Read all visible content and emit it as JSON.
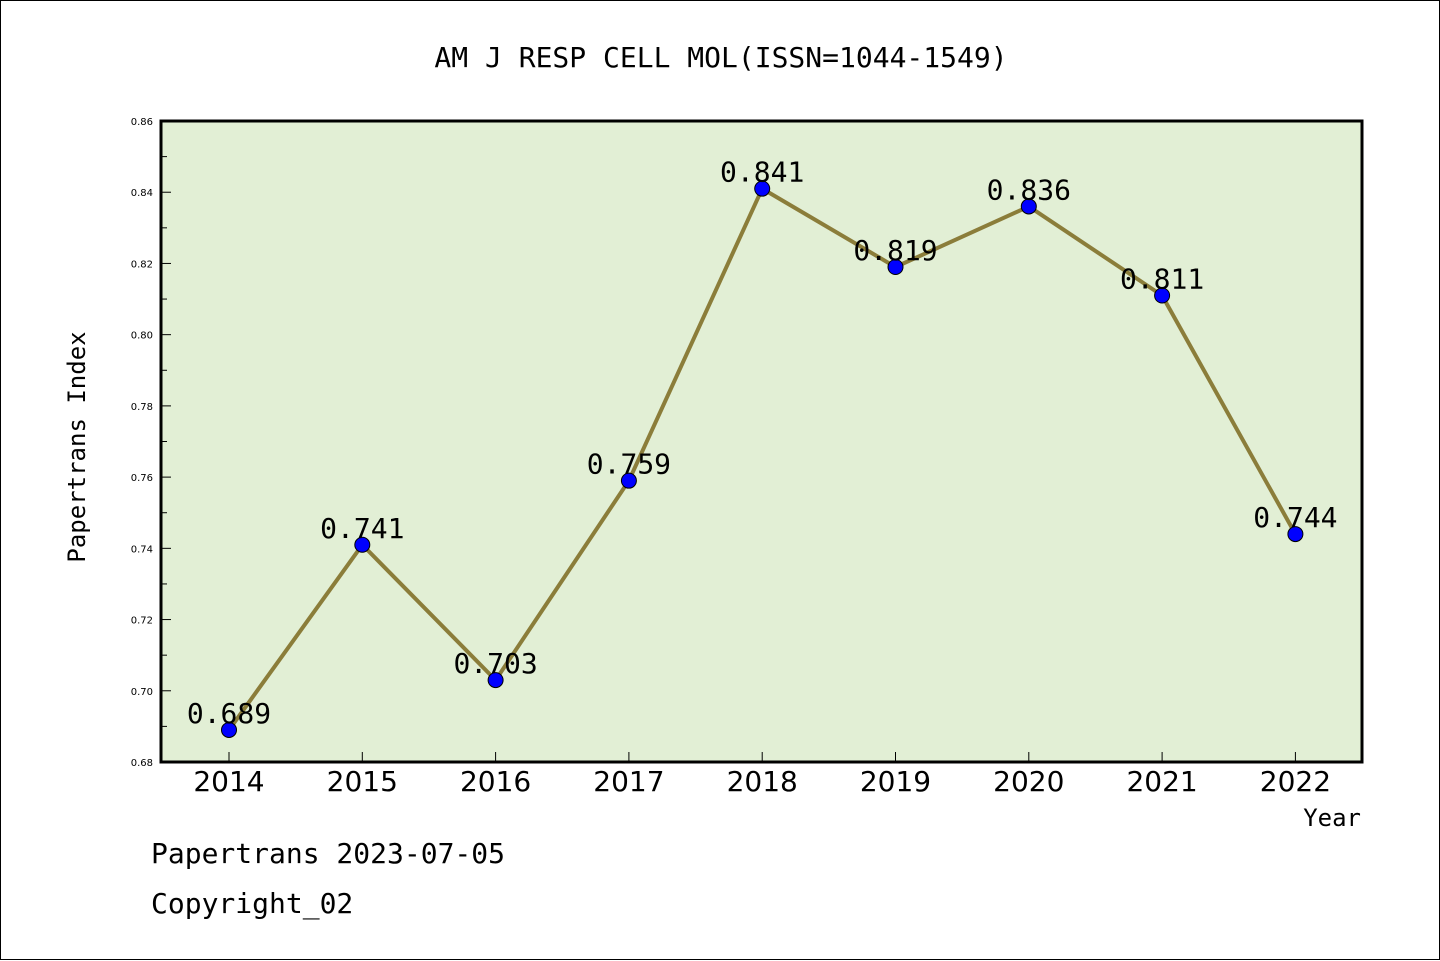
{
  "chart_data": {
    "type": "line",
    "title": "AM J RESP CELL MOL(ISSN=1044-1549)",
    "xlabel": "Year",
    "ylabel": "Papertrans Index",
    "categories": [
      "2014",
      "2015",
      "2016",
      "2017",
      "2018",
      "2019",
      "2020",
      "2021",
      "2022"
    ],
    "values": [
      0.689,
      0.741,
      0.703,
      0.759,
      0.841,
      0.819,
      0.836,
      0.811,
      0.744
    ],
    "data_labels": [
      "0.689",
      "0.741",
      "0.703",
      "0.759",
      "0.841",
      "0.819",
      "0.836",
      "0.811",
      "0.744"
    ],
    "ylim": [
      0.68,
      0.86
    ],
    "yticks": [
      "0.68",
      "0.70",
      "0.72",
      "0.74",
      "0.76",
      "0.78",
      "0.80",
      "0.82",
      "0.84",
      "0.86"
    ],
    "grid": false,
    "colors": {
      "plot_background": "#e2efd5",
      "line": "#8b7d3a",
      "marker": "#0000ff",
      "axis": "#000000"
    }
  },
  "footer": {
    "date_line": "Papertrans 2023-07-05",
    "copyright_line": "Copyright_02"
  }
}
